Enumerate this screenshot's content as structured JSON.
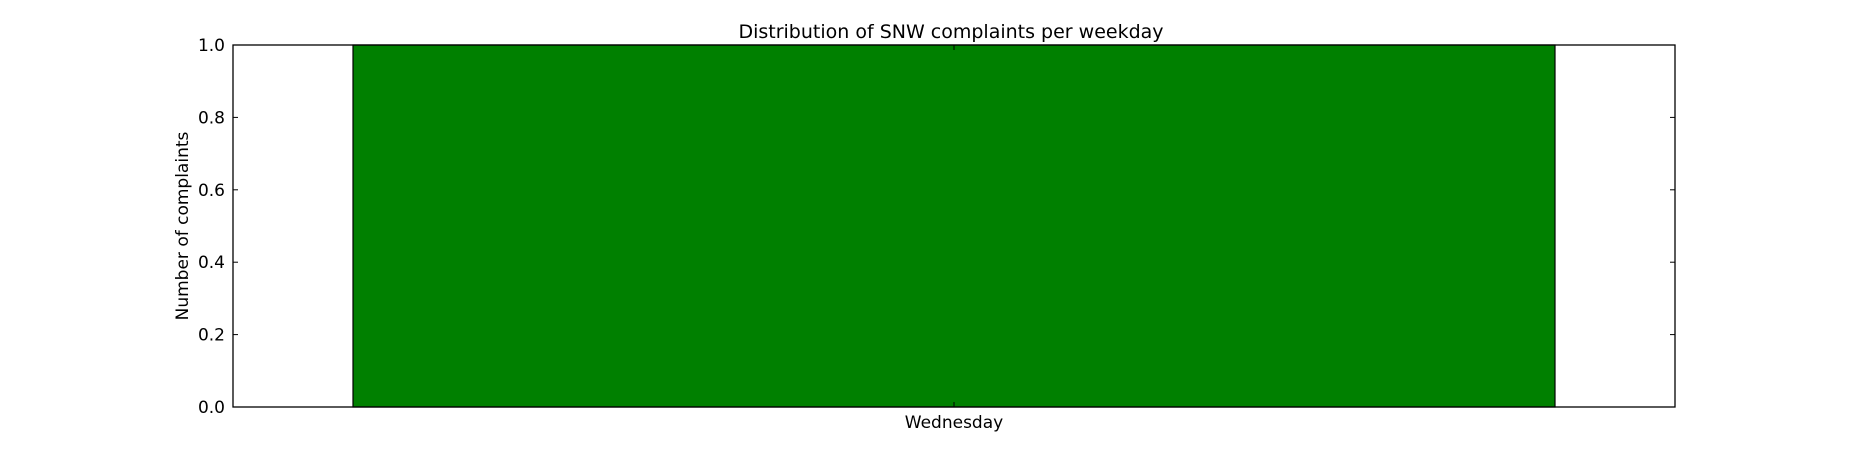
{
  "chart_data": {
    "type": "bar",
    "title": "Distribution of  SNW complaints per weekday",
    "xlabel": "",
    "ylabel": "Number of complaints",
    "categories": [
      "Wednesday"
    ],
    "values": [
      1
    ],
    "ylim": [
      0,
      1.0
    ],
    "y_ticks": [
      "0.0",
      "0.2",
      "0.4",
      "0.6",
      "0.8",
      "1.0"
    ],
    "y_tick_values": [
      0,
      0.2,
      0.4,
      0.6,
      0.8,
      1.0
    ],
    "bar_color": "#008000",
    "grid": false,
    "legend": "none"
  }
}
